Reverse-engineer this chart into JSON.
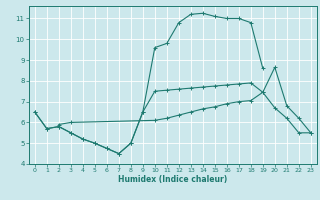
{
  "xlabel": "Humidex (Indice chaleur)",
  "xlim": [
    -0.5,
    23.5
  ],
  "ylim": [
    4,
    11.6
  ],
  "yticks": [
    4,
    5,
    6,
    7,
    8,
    9,
    10,
    11
  ],
  "xticks": [
    0,
    1,
    2,
    3,
    4,
    5,
    6,
    7,
    8,
    9,
    10,
    11,
    12,
    13,
    14,
    15,
    16,
    17,
    18,
    19,
    20,
    21,
    22,
    23
  ],
  "bg_color": "#cce8ec",
  "line_color": "#1e7a70",
  "grid_color": "#ffffff",
  "line1_x": [
    0,
    1,
    2,
    3,
    4,
    5,
    6,
    7,
    8,
    9,
    10,
    11,
    12,
    13,
    14,
    15,
    16,
    17,
    18,
    19,
    20,
    21,
    22,
    23
  ],
  "line1_y": [
    6.5,
    5.7,
    5.8,
    5.5,
    5.2,
    5.0,
    4.75,
    4.5,
    5.0,
    6.5,
    9.6,
    9.8,
    10.8,
    11.2,
    11.25,
    11.1,
    11.0,
    11.0,
    10.8,
    8.6,
    null,
    null,
    null,
    null
  ],
  "line2_x": [
    0,
    1,
    2,
    3,
    4,
    5,
    6,
    7,
    8,
    9,
    10,
    11,
    12,
    13,
    14,
    15,
    16,
    17,
    18,
    19,
    20,
    21,
    22,
    23
  ],
  "line2_y": [
    6.5,
    5.7,
    5.8,
    5.5,
    5.2,
    5.0,
    4.75,
    4.5,
    5.0,
    6.5,
    7.5,
    7.55,
    7.6,
    7.65,
    7.7,
    7.75,
    7.8,
    7.85,
    7.9,
    7.45,
    6.7,
    6.2,
    5.5,
    5.5
  ],
  "line3_x": [
    2,
    3,
    10,
    11,
    12,
    13,
    14,
    15,
    16,
    17,
    18,
    19,
    20,
    21,
    22,
    23
  ],
  "line3_y": [
    5.9,
    6.0,
    6.1,
    6.2,
    6.35,
    6.5,
    6.65,
    6.75,
    6.9,
    7.0,
    7.05,
    7.45,
    8.65,
    6.8,
    6.2,
    5.5
  ]
}
